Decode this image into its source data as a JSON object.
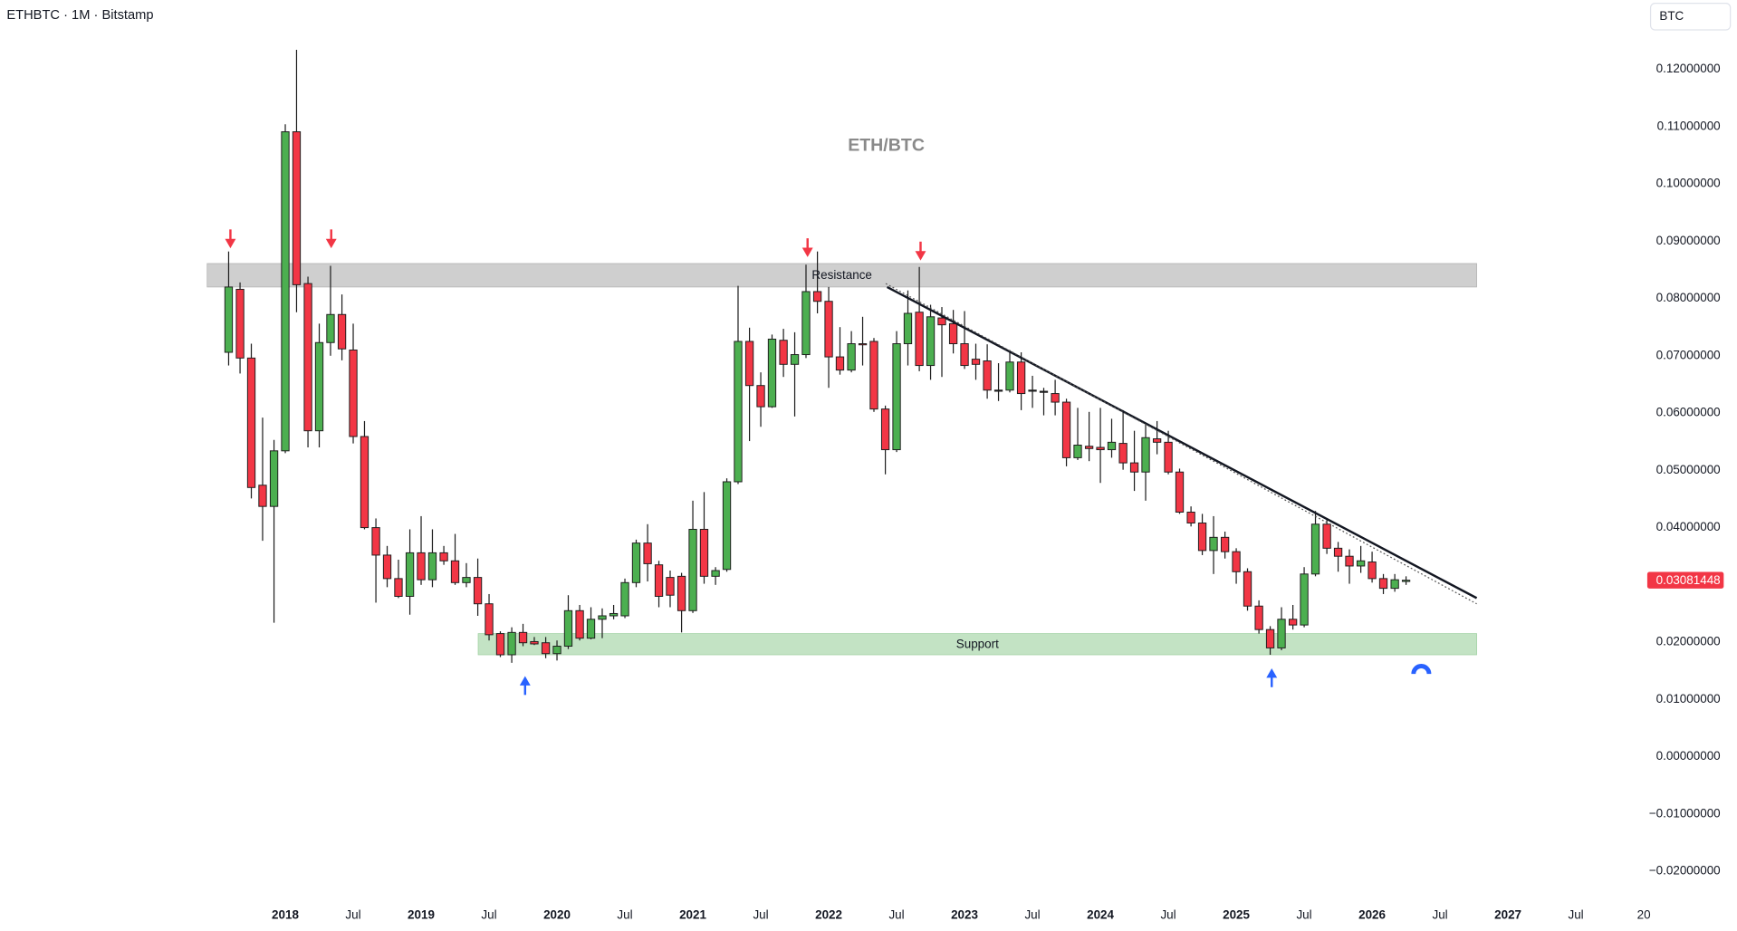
{
  "chart_data": {
    "type": "candlestick",
    "title": "ETHBTC · 1M · Bitstamp",
    "currency": "BTC",
    "note": "ETH/BTC",
    "xlim": [
      2015.9,
      2028.05
    ],
    "ylim": [
      -0.025,
      0.1321
    ],
    "xticks": [
      2018,
      {
        "value": 2018.5,
        "label": "Jul"
      },
      2019,
      {
        "value": 2019.5,
        "label": "Jul"
      },
      2020,
      {
        "value": 2020.5,
        "label": "Jul"
      },
      2021,
      {
        "value": 2021.5,
        "label": "Jul"
      },
      2022,
      {
        "value": 2022.5,
        "label": "Jul"
      },
      2023,
      {
        "value": 2023.5,
        "label": "Jul"
      },
      2024,
      {
        "value": 2024.5,
        "label": "Jul"
      },
      2025,
      {
        "value": 2025.5,
        "label": "Jul"
      },
      2026,
      {
        "value": 2026.5,
        "label": "Jul"
      },
      2027,
      {
        "value": 2027.5,
        "label": "Jul"
      },
      {
        "value": 2028,
        "label": "20"
      }
    ],
    "yticks": [
      {
        "value": 0.12,
        "label": "0.12000000"
      },
      {
        "value": 0.11,
        "label": "0.11000000"
      },
      {
        "value": 0.1,
        "label": "0.10000000"
      },
      {
        "value": 0.09,
        "label": "0.09000000"
      },
      {
        "value": 0.08,
        "label": "0.08000000"
      },
      {
        "value": 0.07,
        "label": "0.07000000"
      },
      {
        "value": 0.06,
        "label": "0.06000000"
      },
      {
        "value": 0.05,
        "label": "0.05000000"
      },
      {
        "value": 0.04,
        "label": "0.04000000"
      },
      {
        "value": 0.03,
        "label": "0.03000000"
      },
      {
        "value": 0.02,
        "label": "0.02000000"
      },
      {
        "value": 0.01,
        "label": "0.01000000"
      },
      {
        "value": 0,
        "label": "0.00000000"
      },
      {
        "value": -0.01,
        "label": "−0.01000000"
      },
      {
        "value": -0.02,
        "label": "−0.02000000"
      }
    ],
    "up_color": "#4caf50",
    "down_color": "#f23645",
    "x": [
      2017.583,
      2017.667,
      2017.75,
      2017.833,
      2017.917,
      2018,
      2018.083,
      2018.167,
      2018.25,
      2018.333,
      2018.417,
      2018.5,
      2018.583,
      2018.667,
      2018.75,
      2018.833,
      2018.917,
      2019,
      2019.083,
      2019.167,
      2019.25,
      2019.333,
      2019.417,
      2019.5,
      2019.583,
      2019.667,
      2019.75,
      2019.833,
      2019.917,
      2020,
      2020.083,
      2020.167,
      2020.25,
      2020.333,
      2020.417,
      2020.5,
      2020.583,
      2020.667,
      2020.75,
      2020.833,
      2020.917,
      2021,
      2021.083,
      2021.167,
      2021.25,
      2021.333,
      2021.417,
      2021.5,
      2021.583,
      2021.667,
      2021.75,
      2021.833,
      2021.917,
      2022,
      2022.083,
      2022.167,
      2022.25,
      2022.333,
      2022.417,
      2022.5,
      2022.583,
      2022.667,
      2022.75,
      2022.833,
      2022.917,
      2023,
      2023.083,
      2023.167,
      2023.25,
      2023.333,
      2023.417,
      2023.5,
      2023.583,
      2023.667,
      2023.75,
      2023.833,
      2023.917,
      2024,
      2024.083,
      2024.167,
      2024.25,
      2024.333,
      2024.417,
      2024.5,
      2024.583,
      2024.667,
      2024.75,
      2024.833,
      2024.917,
      2025,
      2025.083,
      2025.167,
      2025.25,
      2025.333,
      2025.417,
      2025.5,
      2025.583,
      2025.667,
      2025.75,
      2025.833,
      2025.917,
      2026,
      2026.083,
      2026.167,
      2026.25
    ],
    "open": [
      0.0706,
      0.0816,
      0.0696,
      0.0474,
      0.0437,
      0.0534,
      0.1091,
      0.0826,
      0.0569,
      0.0723,
      0.0772,
      0.071,
      0.0559,
      0.04,
      0.0352,
      0.0311,
      0.028,
      0.0356,
      0.0309,
      0.0356,
      0.0342,
      0.0304,
      0.0313,
      0.0267,
      0.0215,
      0.0178,
      0.0217,
      0.0201,
      0.0199,
      0.018,
      0.0193,
      0.0255,
      0.0207,
      0.024,
      0.0246,
      0.0246,
      0.0304,
      0.0373,
      0.0335,
      0.0313,
      0.0315,
      0.0255,
      0.0397,
      0.0315,
      0.0327,
      0.048,
      0.0725,
      0.0648,
      0.0611,
      0.0727,
      0.0685,
      0.0702,
      0.0812,
      0.0795,
      0.0698,
      0.0675,
      0.0721,
      0.0725,
      0.0607,
      0.0536,
      0.0721,
      0.0776,
      0.0683,
      0.0766,
      0.0756,
      0.0721,
      0.0694,
      0.0691,
      0.064,
      0.064,
      0.0689,
      0.064,
      0.0638,
      0.0634,
      0.0619,
      0.0522,
      0.0542,
      0.054,
      0.0536,
      0.0547,
      0.0513,
      0.0497,
      0.0555,
      0.0549,
      0.0497,
      0.0427,
      0.0408,
      0.036,
      0.0383,
      0.0358,
      0.0323,
      0.0263,
      0.0222,
      0.019,
      0.024,
      0.023,
      0.0319,
      0.0406,
      0.0364,
      0.035,
      0.0333,
      0.034,
      0.0311,
      0.0294,
      0.0306
    ],
    "high": [
      0.0882,
      0.0828,
      0.0721,
      0.0592,
      0.0553,
      0.1104,
      0.1234,
      0.0838,
      0.0756,
      0.0857,
      0.0807,
      0.0756,
      0.0586,
      0.0416,
      0.0368,
      0.0344,
      0.0397,
      0.042,
      0.0397,
      0.0368,
      0.0389,
      0.0338,
      0.0346,
      0.0284,
      0.0219,
      0.0226,
      0.0232,
      0.0209,
      0.0209,
      0.0203,
      0.0282,
      0.0265,
      0.0261,
      0.0259,
      0.0265,
      0.0311,
      0.0379,
      0.0406,
      0.0342,
      0.0325,
      0.0321,
      0.0447,
      0.0462,
      0.0331,
      0.0486,
      0.0822,
      0.0749,
      0.0671,
      0.0737,
      0.0747,
      0.0741,
      0.0859,
      0.0882,
      0.082,
      0.075,
      0.0743,
      0.0768,
      0.0731,
      0.0613,
      0.0743,
      0.0814,
      0.0855,
      0.0789,
      0.0785,
      0.078,
      0.0778,
      0.0721,
      0.072,
      0.0687,
      0.071,
      0.0706,
      0.0665,
      0.0644,
      0.0658,
      0.0625,
      0.0609,
      0.0602,
      0.0609,
      0.059,
      0.0605,
      0.0569,
      0.0582,
      0.0586,
      0.0569,
      0.0503,
      0.0437,
      0.0424,
      0.042,
      0.0393,
      0.0364,
      0.0329,
      0.0273,
      0.0228,
      0.0261,
      0.0265,
      0.0331,
      0.0429,
      0.0416,
      0.0375,
      0.0362,
      0.0368,
      0.0358,
      0.0319,
      0.0319,
      0.0315
    ],
    "low": [
      0.0683,
      0.0669,
      0.0451,
      0.0377,
      0.0234,
      0.053,
      0.0776,
      0.054,
      0.054,
      0.07,
      0.0692,
      0.0547,
      0.0397,
      0.0269,
      0.0296,
      0.0277,
      0.0248,
      0.03,
      0.0296,
      0.0335,
      0.03,
      0.0296,
      0.0246,
      0.0203,
      0.0174,
      0.0164,
      0.0193,
      0.0195,
      0.0172,
      0.0168,
      0.0188,
      0.0203,
      0.0205,
      0.0207,
      0.024,
      0.0242,
      0.0296,
      0.0306,
      0.0261,
      0.0261,
      0.0217,
      0.0251,
      0.0302,
      0.03,
      0.0323,
      0.0476,
      0.0551,
      0.0576,
      0.0609,
      0.0663,
      0.0594,
      0.0696,
      0.0774,
      0.0644,
      0.0667,
      0.0671,
      0.0683,
      0.0602,
      0.0493,
      0.0532,
      0.0683,
      0.0673,
      0.0658,
      0.0663,
      0.0704,
      0.0677,
      0.0658,
      0.0625,
      0.0621,
      0.0636,
      0.0605,
      0.0609,
      0.0596,
      0.0596,
      0.0507,
      0.0518,
      0.0516,
      0.0478,
      0.0522,
      0.0501,
      0.0464,
      0.0447,
      0.0528,
      0.0493,
      0.0424,
      0.0402,
      0.0352,
      0.0319,
      0.0346,
      0.0302,
      0.0255,
      0.0215,
      0.0178,
      0.0186,
      0.0222,
      0.0226,
      0.0315,
      0.0354,
      0.0323,
      0.0302,
      0.0321,
      0.0304,
      0.0284,
      0.0288,
      0.03
    ],
    "close": [
      0.082,
      0.0696,
      0.047,
      0.0437,
      0.0534,
      0.1091,
      0.0824,
      0.0569,
      0.0723,
      0.0772,
      0.0712,
      0.0559,
      0.04,
      0.0352,
      0.0311,
      0.028,
      0.0356,
      0.0309,
      0.0356,
      0.0342,
      0.0304,
      0.0313,
      0.0267,
      0.0213,
      0.0178,
      0.0217,
      0.0199,
      0.0197,
      0.018,
      0.0193,
      0.0255,
      0.0207,
      0.024,
      0.0246,
      0.025,
      0.0304,
      0.0373,
      0.0337,
      0.028,
      0.0282,
      0.0255,
      0.0397,
      0.0315,
      0.0325,
      0.048,
      0.0725,
      0.0648,
      0.0611,
      0.0729,
      0.0685,
      0.0702,
      0.0812,
      0.0795,
      0.0698,
      0.0675,
      0.0721,
      0.072,
      0.0607,
      0.0536,
      0.0721,
      0.0774,
      0.0683,
      0.0768,
      0.0754,
      0.0721,
      0.0683,
      0.0685,
      0.064,
      0.064,
      0.0689,
      0.0634,
      0.064,
      0.0638,
      0.0619,
      0.0522,
      0.0544,
      0.0538,
      0.0536,
      0.0549,
      0.0513,
      0.0497,
      0.0557,
      0.0549,
      0.0497,
      0.0427,
      0.0408,
      0.036,
      0.0383,
      0.0358,
      0.0323,
      0.0263,
      0.0222,
      0.019,
      0.024,
      0.023,
      0.0319,
      0.0406,
      0.0364,
      0.035,
      0.0333,
      0.0342,
      0.0311,
      0.0294,
      0.0309,
      0.03081448
    ],
    "last_price": 0.03081448,
    "zones": [
      {
        "label": "Resistance",
        "x": [
          2017.425,
          2026.77
        ],
        "y": [
          0.082,
          0.0861
        ],
        "color": "#cfcfcf"
      },
      {
        "label": "Support",
        "x": [
          2019.42,
          2026.77
        ],
        "y": [
          0.0178,
          0.0215
        ],
        "color": "#c3e3c4"
      }
    ],
    "trendlines": [
      {
        "x": [
          2022.43,
          2026.77
        ],
        "y": [
          0.082,
          0.0277
        ],
        "style": "solid"
      },
      {
        "x": [
          2022.42,
          2026.77
        ],
        "y": [
          0.0826,
          0.0267
        ],
        "style": "dotted"
      }
    ]
  }
}
